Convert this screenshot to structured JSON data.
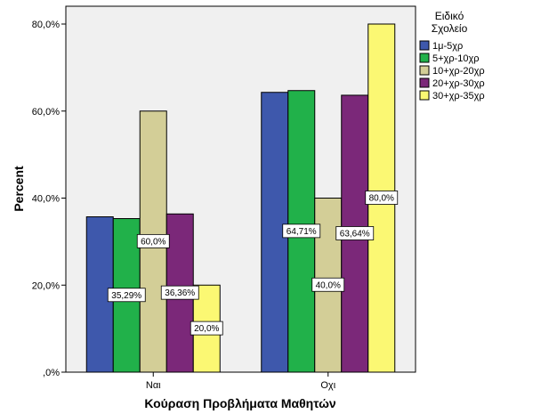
{
  "chart_data": {
    "type": "bar",
    "categories": [
      "Ναι",
      "Οχι"
    ],
    "xlabel": "Κούραση Προβλήματα Μαθητών",
    "ylabel": "Percent",
    "ylim": [
      0,
      90
    ],
    "yticks": [
      0,
      20,
      40,
      60,
      80
    ],
    "ytick_labels": [
      ",0%",
      "20,0%",
      "40,0%",
      "60,0%",
      "80,0%"
    ],
    "legend_title": [
      "Ειδικό",
      "Σχολείο"
    ],
    "legend_position": "right",
    "grid": false,
    "background": "#f0f0f0",
    "series": [
      {
        "name": "1μ-5χρ",
        "color": "#3e58ac",
        "values": [
          35.7,
          64.3
        ],
        "labels": [
          "",
          ""
        ]
      },
      {
        "name": "5+χρ-10χρ",
        "color": "#21b14a",
        "values": [
          35.29,
          64.71
        ],
        "labels": [
          "35,29%",
          "64,71%"
        ]
      },
      {
        "name": "10+χρ-20χρ",
        "color": "#d3ce97",
        "values": [
          60.0,
          40.0
        ],
        "labels": [
          "60,0%",
          "40,0%"
        ]
      },
      {
        "name": "20+χρ-30χρ",
        "color": "#7b2879",
        "values": [
          36.36,
          63.64
        ],
        "labels": [
          "36,36%",
          "63,64%"
        ]
      },
      {
        "name": "30+χρ-35χρ",
        "color": "#fbf873",
        "values": [
          20.0,
          80.0
        ],
        "labels": [
          "20,0%",
          "80,0%"
        ]
      }
    ]
  }
}
